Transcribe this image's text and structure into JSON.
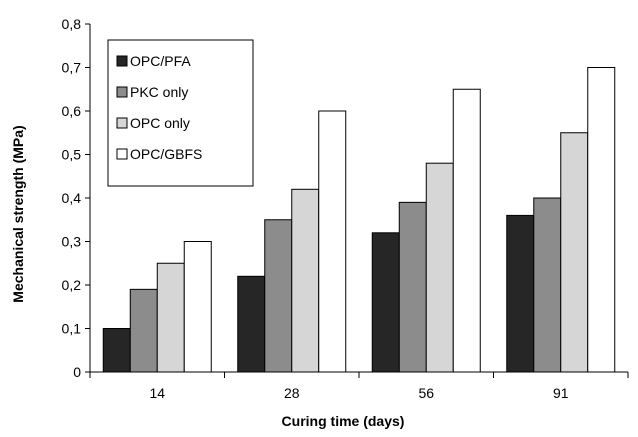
{
  "chart_data": {
    "type": "bar",
    "title": "",
    "xlabel": "Curing time (days)",
    "ylabel": "Mechanical strength (MPa)",
    "categories": [
      "14",
      "28",
      "56",
      "91"
    ],
    "ylim": [
      0,
      0.8
    ],
    "yticks": [
      "0",
      "0,1",
      "0,2",
      "0,3",
      "0,4",
      "0,5",
      "0,6",
      "0,7",
      "0,8"
    ],
    "grid": false,
    "legend_position": "top-left",
    "series": [
      {
        "name": "OPC/PFA",
        "color": "#262626",
        "values": [
          0.1,
          0.22,
          0.32,
          0.36
        ]
      },
      {
        "name": "PKC only",
        "color": "#8c8c8c",
        "values": [
          0.19,
          0.35,
          0.39,
          0.4
        ]
      },
      {
        "name": "OPC only",
        "color": "#d6d6d6",
        "values": [
          0.25,
          0.42,
          0.48,
          0.55
        ]
      },
      {
        "name": "OPC/GBFS",
        "color": "#ffffff",
        "values": [
          0.3,
          0.6,
          0.65,
          0.7
        ]
      }
    ]
  }
}
